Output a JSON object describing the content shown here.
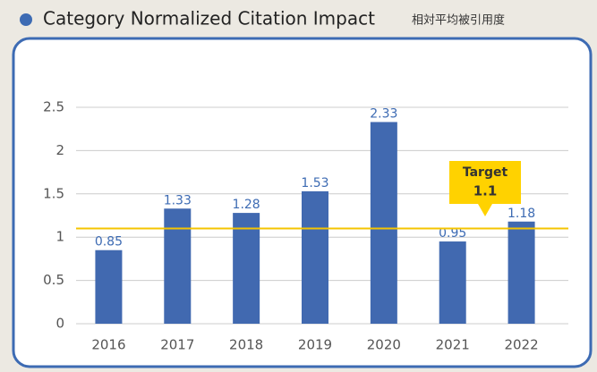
{
  "chart_data": {
    "type": "bar",
    "title": "Category Normalized Citation Impact",
    "subtitle": "相対平均被引用度",
    "categories": [
      "2016",
      "2017",
      "2018",
      "2019",
      "2020",
      "2021",
      "2022"
    ],
    "values": [
      0.85,
      1.33,
      1.28,
      1.53,
      2.33,
      0.95,
      1.18
    ],
    "color": "#4169b0",
    "ylim": [
      0,
      2.5
    ],
    "yticks": [
      0,
      0.5,
      1,
      1.5,
      2,
      2.5
    ],
    "grid": true,
    "target": {
      "label": "Target",
      "value": 1.1,
      "color": "#f5c400"
    }
  }
}
